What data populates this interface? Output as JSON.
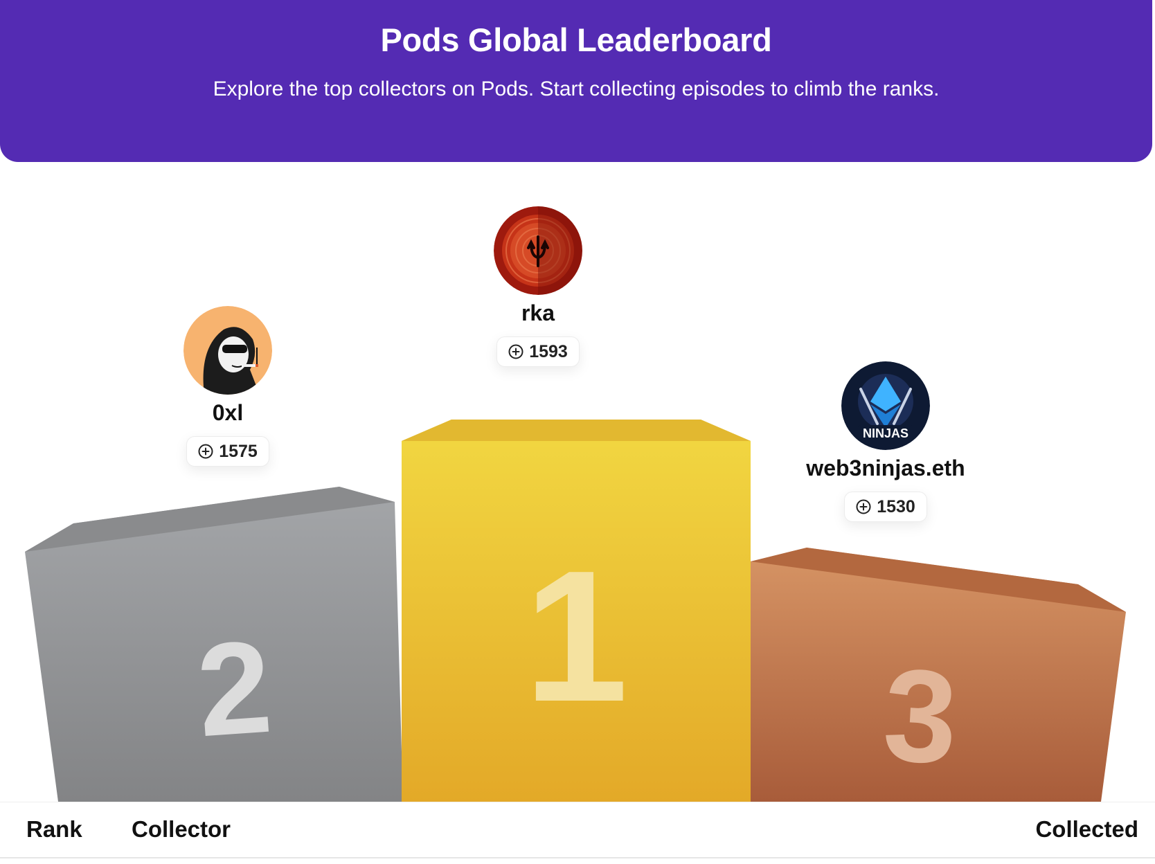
{
  "header": {
    "title": "Pods Global Leaderboard",
    "subtitle": "Explore the top collectors on Pods. Start collecting episodes to climb the ranks."
  },
  "podium": {
    "first": {
      "rank": "1",
      "name": "rka",
      "collected": "1593",
      "avatar_icon": "red-mandala-trident-avatar"
    },
    "second": {
      "rank": "2",
      "name": "0xl",
      "collected": "1575",
      "avatar_icon": "hooded-smoker-cartoon-avatar"
    },
    "third": {
      "rank": "3",
      "name": "web3ninjas.eth",
      "collected": "1530",
      "avatar_icon": "web3-ninjas-logo-avatar"
    }
  },
  "table": {
    "columns": [
      "Rank",
      "Collector",
      "Collected"
    ]
  },
  "colors": {
    "banner": "#542bb3",
    "gold": "#edc536",
    "silver": "#9a9c9f",
    "bronze": "#c67a4c"
  }
}
